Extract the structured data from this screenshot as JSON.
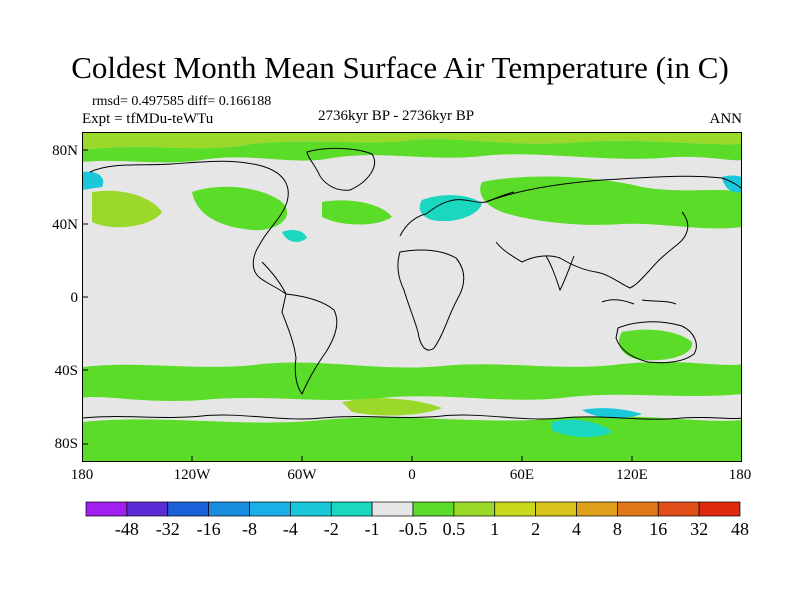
{
  "title": "Coldest Month Mean Surface Air Temperature (in C)",
  "stats_text": "rmsd= 0.497585  diff= 0.166188",
  "expt_text": "Expt = tfMDu-teWTu",
  "period_text": "2736kyr BP - 2736kyr BP",
  "season_text": "ANN",
  "map": {
    "projection": "cylindrical-equidistant",
    "background_color": "#e6e6e6",
    "coastline_color": "#000000",
    "lon_range": [
      -180,
      180
    ],
    "lat_range": [
      -90,
      90
    ]
  },
  "axes": {
    "y_labels": [
      "80N",
      "40N",
      "0",
      "40S",
      "80S"
    ],
    "x_labels": [
      "180",
      "120W",
      "60W",
      "0",
      "60E",
      "120E",
      "180"
    ]
  },
  "colorbar": {
    "labels": [
      "-48",
      "-32",
      "-16",
      "-8",
      "-4",
      "-2",
      "-1",
      "-0.5",
      "0.5",
      "1",
      "2",
      "4",
      "8",
      "16",
      "32",
      "48"
    ],
    "colors": [
      "#a020f0",
      "#5a2cd6",
      "#1a60d8",
      "#1a8ce0",
      "#1ab0e6",
      "#1ac8da",
      "#1ad8c0",
      "#e6e6e6",
      "#5adc28",
      "#9ad82a",
      "#c8d81a",
      "#d8c41a",
      "#e0a01a",
      "#e0781a",
      "#e04e1a",
      "#e02a10"
    ]
  },
  "icons": [
    "world-map"
  ]
}
